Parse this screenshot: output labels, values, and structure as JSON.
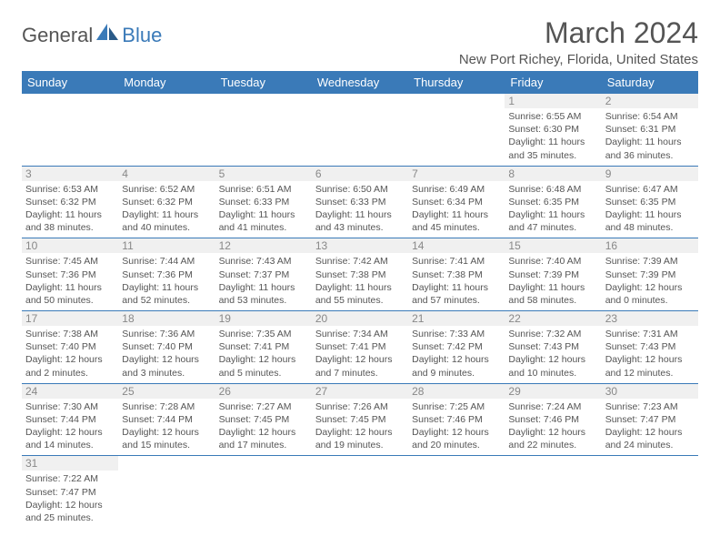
{
  "logo": {
    "text1": "General",
    "text2": "Blue"
  },
  "title": "March 2024",
  "location": "New Port Richey, Florida, United States",
  "colors": {
    "header_bg": "#3a7ab8",
    "header_fg": "#ffffff",
    "text": "#555555",
    "border": "#3a7ab8",
    "daynum_bg": "#f0f0f0"
  },
  "weekdays": [
    "Sunday",
    "Monday",
    "Tuesday",
    "Wednesday",
    "Thursday",
    "Friday",
    "Saturday"
  ],
  "weeks": [
    [
      null,
      null,
      null,
      null,
      null,
      {
        "n": "1",
        "sr": "6:55 AM",
        "ss": "6:30 PM",
        "dl": "11 hours and 35 minutes."
      },
      {
        "n": "2",
        "sr": "6:54 AM",
        "ss": "6:31 PM",
        "dl": "11 hours and 36 minutes."
      }
    ],
    [
      {
        "n": "3",
        "sr": "6:53 AM",
        "ss": "6:32 PM",
        "dl": "11 hours and 38 minutes."
      },
      {
        "n": "4",
        "sr": "6:52 AM",
        "ss": "6:32 PM",
        "dl": "11 hours and 40 minutes."
      },
      {
        "n": "5",
        "sr": "6:51 AM",
        "ss": "6:33 PM",
        "dl": "11 hours and 41 minutes."
      },
      {
        "n": "6",
        "sr": "6:50 AM",
        "ss": "6:33 PM",
        "dl": "11 hours and 43 minutes."
      },
      {
        "n": "7",
        "sr": "6:49 AM",
        "ss": "6:34 PM",
        "dl": "11 hours and 45 minutes."
      },
      {
        "n": "8",
        "sr": "6:48 AM",
        "ss": "6:35 PM",
        "dl": "11 hours and 47 minutes."
      },
      {
        "n": "9",
        "sr": "6:47 AM",
        "ss": "6:35 PM",
        "dl": "11 hours and 48 minutes."
      }
    ],
    [
      {
        "n": "10",
        "sr": "7:45 AM",
        "ss": "7:36 PM",
        "dl": "11 hours and 50 minutes."
      },
      {
        "n": "11",
        "sr": "7:44 AM",
        "ss": "7:36 PM",
        "dl": "11 hours and 52 minutes."
      },
      {
        "n": "12",
        "sr": "7:43 AM",
        "ss": "7:37 PM",
        "dl": "11 hours and 53 minutes."
      },
      {
        "n": "13",
        "sr": "7:42 AM",
        "ss": "7:38 PM",
        "dl": "11 hours and 55 minutes."
      },
      {
        "n": "14",
        "sr": "7:41 AM",
        "ss": "7:38 PM",
        "dl": "11 hours and 57 minutes."
      },
      {
        "n": "15",
        "sr": "7:40 AM",
        "ss": "7:39 PM",
        "dl": "11 hours and 58 minutes."
      },
      {
        "n": "16",
        "sr": "7:39 AM",
        "ss": "7:39 PM",
        "dl": "12 hours and 0 minutes."
      }
    ],
    [
      {
        "n": "17",
        "sr": "7:38 AM",
        "ss": "7:40 PM",
        "dl": "12 hours and 2 minutes."
      },
      {
        "n": "18",
        "sr": "7:36 AM",
        "ss": "7:40 PM",
        "dl": "12 hours and 3 minutes."
      },
      {
        "n": "19",
        "sr": "7:35 AM",
        "ss": "7:41 PM",
        "dl": "12 hours and 5 minutes."
      },
      {
        "n": "20",
        "sr": "7:34 AM",
        "ss": "7:41 PM",
        "dl": "12 hours and 7 minutes."
      },
      {
        "n": "21",
        "sr": "7:33 AM",
        "ss": "7:42 PM",
        "dl": "12 hours and 9 minutes."
      },
      {
        "n": "22",
        "sr": "7:32 AM",
        "ss": "7:43 PM",
        "dl": "12 hours and 10 minutes."
      },
      {
        "n": "23",
        "sr": "7:31 AM",
        "ss": "7:43 PM",
        "dl": "12 hours and 12 minutes."
      }
    ],
    [
      {
        "n": "24",
        "sr": "7:30 AM",
        "ss": "7:44 PM",
        "dl": "12 hours and 14 minutes."
      },
      {
        "n": "25",
        "sr": "7:28 AM",
        "ss": "7:44 PM",
        "dl": "12 hours and 15 minutes."
      },
      {
        "n": "26",
        "sr": "7:27 AM",
        "ss": "7:45 PM",
        "dl": "12 hours and 17 minutes."
      },
      {
        "n": "27",
        "sr": "7:26 AM",
        "ss": "7:45 PM",
        "dl": "12 hours and 19 minutes."
      },
      {
        "n": "28",
        "sr": "7:25 AM",
        "ss": "7:46 PM",
        "dl": "12 hours and 20 minutes."
      },
      {
        "n": "29",
        "sr": "7:24 AM",
        "ss": "7:46 PM",
        "dl": "12 hours and 22 minutes."
      },
      {
        "n": "30",
        "sr": "7:23 AM",
        "ss": "7:47 PM",
        "dl": "12 hours and 24 minutes."
      }
    ],
    [
      {
        "n": "31",
        "sr": "7:22 AM",
        "ss": "7:47 PM",
        "dl": "12 hours and 25 minutes."
      },
      null,
      null,
      null,
      null,
      null,
      null
    ]
  ],
  "labels": {
    "sunrise": "Sunrise:",
    "sunset": "Sunset:",
    "daylight": "Daylight:"
  }
}
